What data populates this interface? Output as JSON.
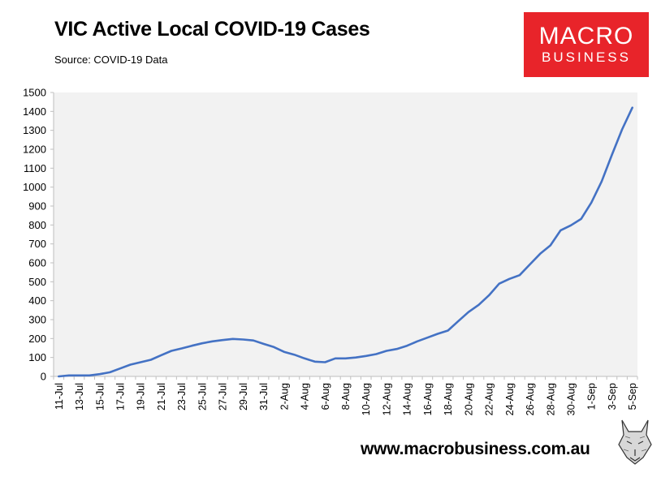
{
  "header": {
    "title": "VIC Active Local COVID-19 Cases",
    "source": "Source: COVID-19 Data"
  },
  "logo": {
    "line1": "MACRO",
    "line2": "BUSINESS",
    "color": "#e8242a"
  },
  "footer": {
    "url": "www.macrobusiness.com.au",
    "mascot_icon": "fox-sketch-icon"
  },
  "chart_data": {
    "type": "line",
    "title": "VIC Active Local COVID-19 Cases",
    "xlabel": "",
    "ylabel": "",
    "ylim": [
      0,
      1500
    ],
    "yticks": [
      0,
      100,
      200,
      300,
      400,
      500,
      600,
      700,
      800,
      900,
      1000,
      1100,
      1200,
      1300,
      1400,
      1500
    ],
    "grid": false,
    "legend": "none",
    "plot_background": "#f2f2f2",
    "line_color": "#4472c4",
    "x": [
      "11-Jul",
      "12-Jul",
      "13-Jul",
      "14-Jul",
      "15-Jul",
      "16-Jul",
      "17-Jul",
      "18-Jul",
      "19-Jul",
      "20-Jul",
      "21-Jul",
      "22-Jul",
      "23-Jul",
      "24-Jul",
      "25-Jul",
      "26-Jul",
      "27-Jul",
      "28-Jul",
      "29-Jul",
      "30-Jul",
      "31-Jul",
      "1-Aug",
      "2-Aug",
      "3-Aug",
      "4-Aug",
      "5-Aug",
      "6-Aug",
      "7-Aug",
      "8-Aug",
      "9-Aug",
      "10-Aug",
      "11-Aug",
      "12-Aug",
      "13-Aug",
      "14-Aug",
      "15-Aug",
      "16-Aug",
      "17-Aug",
      "18-Aug",
      "19-Aug",
      "20-Aug",
      "21-Aug",
      "22-Aug",
      "23-Aug",
      "24-Aug",
      "25-Aug",
      "26-Aug",
      "27-Aug",
      "28-Aug",
      "29-Aug",
      "30-Aug",
      "31-Aug",
      "1-Sep",
      "2-Sep",
      "3-Sep",
      "4-Sep",
      "5-Sep"
    ],
    "xtick_labels": [
      "11-Jul",
      "13-Jul",
      "15-Jul",
      "17-Jul",
      "19-Jul",
      "21-Jul",
      "23-Jul",
      "25-Jul",
      "27-Jul",
      "29-Jul",
      "31-Jul",
      "2-Aug",
      "4-Aug",
      "6-Aug",
      "8-Aug",
      "10-Aug",
      "12-Aug",
      "14-Aug",
      "16-Aug",
      "18-Aug",
      "20-Aug",
      "22-Aug",
      "24-Aug",
      "26-Aug",
      "28-Aug",
      "30-Aug",
      "1-Sep",
      "3-Sep",
      "5-Sep"
    ],
    "series": [
      {
        "values": [
          0,
          5,
          5,
          5,
          12,
          22,
          42,
          62,
          75,
          88,
          112,
          135,
          148,
          162,
          175,
          185,
          192,
          198,
          195,
          190,
          172,
          155,
          130,
          115,
          95,
          78,
          75,
          95,
          95,
          100,
          108,
          118,
          135,
          145,
          162,
          185,
          205,
          225,
          242,
          292,
          340,
          378,
          428,
          490,
          515,
          535,
          592,
          648,
          692,
          772,
          798,
          832,
          918,
          1030,
          1170,
          1305,
          1420
        ]
      }
    ]
  }
}
